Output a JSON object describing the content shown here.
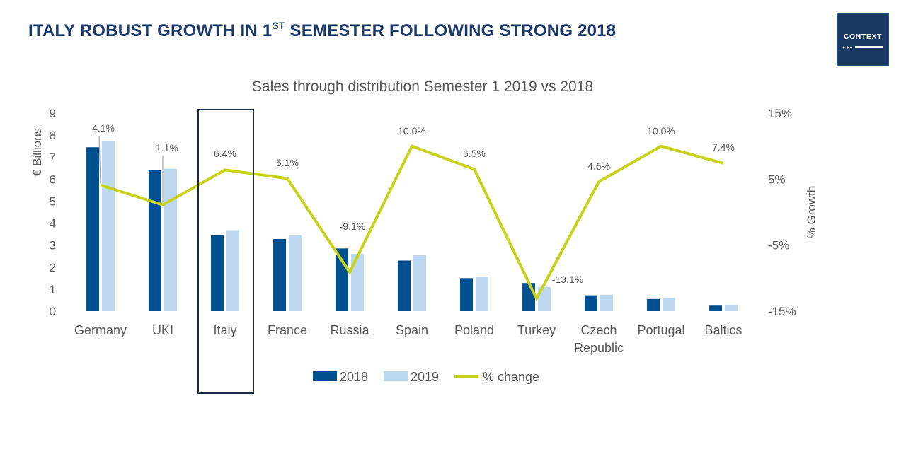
{
  "slide": {
    "title_main": "ITALY ROBUST GROWTH IN 1",
    "title_sup": "ST",
    "title_rest": " SEMESTER FOLLOWING STRONG 2018",
    "logo_text": "CONTEXT",
    "logo_dots": "●●●"
  },
  "chart_data": {
    "type": "bar",
    "title": "Sales through distribution Semester 1 2019 vs 2018",
    "ylabel": "€ Billions",
    "y2label": "% Growth",
    "ylim": [
      0,
      9
    ],
    "y2lim": [
      -15,
      15
    ],
    "yticks": [
      "0",
      "1",
      "2",
      "3",
      "4",
      "5",
      "6",
      "7",
      "8",
      "9"
    ],
    "y2ticks": [
      "15%",
      "5%",
      "-5%",
      "-15%"
    ],
    "categories": [
      "Germany",
      "UKI",
      "Italy",
      "France",
      "Russia",
      "Spain",
      "Poland",
      "Turkey",
      "Czech Republic",
      "Portugal",
      "Baltics"
    ],
    "series": [
      {
        "name": "2018",
        "color": "#004f8f",
        "values": [
          7.45,
          6.4,
          3.45,
          3.28,
          2.85,
          2.3,
          1.5,
          1.28,
          0.72,
          0.55,
          0.25
        ]
      },
      {
        "name": "2019",
        "color": "#bdd9f2",
        "values": [
          7.75,
          6.47,
          3.68,
          3.45,
          2.6,
          2.55,
          1.58,
          1.1,
          0.75,
          0.6,
          0.27
        ]
      }
    ],
    "line_series": {
      "name": "% change",
      "color": "#c9d21a",
      "values": [
        4.1,
        1.1,
        6.4,
        5.1,
        -9.1,
        10.0,
        6.5,
        -13.1,
        4.6,
        10.0,
        7.4
      ],
      "labels": [
        "4.1%",
        "1.1%",
        "6.4%",
        "5.1%",
        "-9.1%",
        "10.0%",
        "6.5%",
        "-13.1%",
        "4.6%",
        "10.0%",
        "7.4%"
      ]
    },
    "highlight_category": "Italy",
    "grid": false,
    "legend": "bottom-center"
  }
}
